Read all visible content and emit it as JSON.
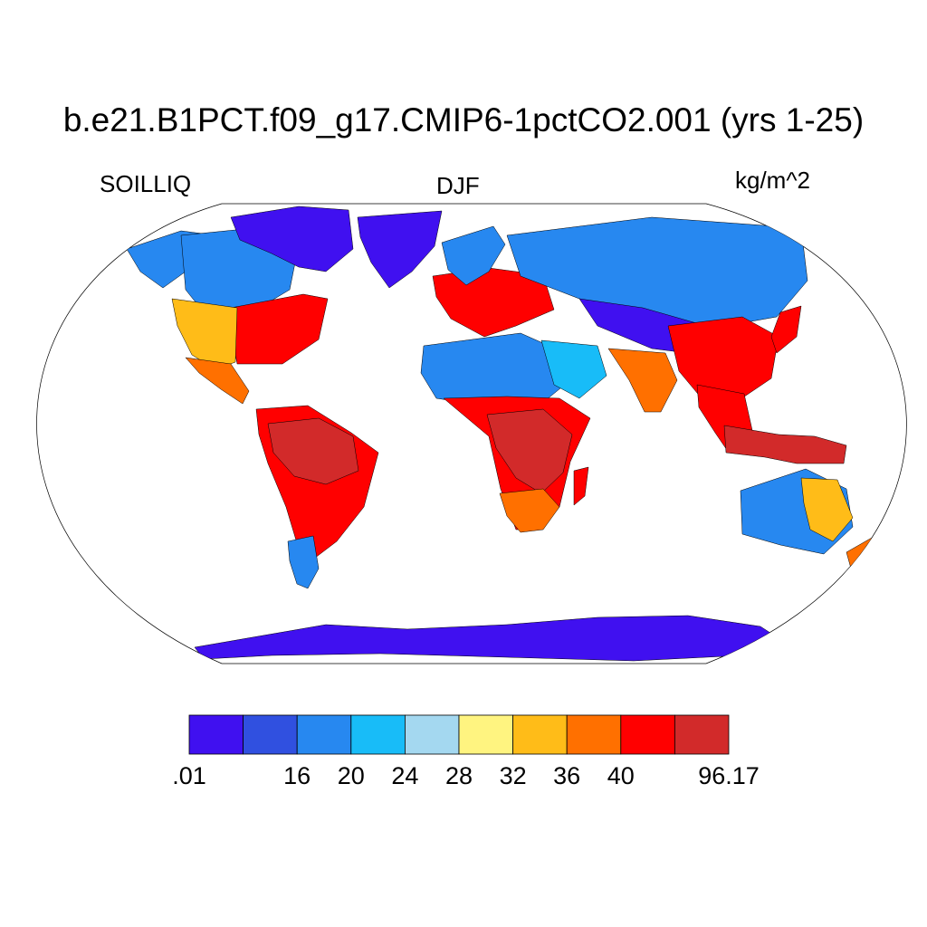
{
  "header": {
    "title": "b.e21.B1PCT.f09_g17.CMIP6-1pctCO2.001 (yrs 1-25)",
    "variable": "SOILLIQ",
    "season": "DJF",
    "units": "kg/m^2"
  },
  "colorbar": {
    "colors": [
      "#4010f0",
      "#3050e0",
      "#2788f0",
      "#18bcf8",
      "#a4d8f0",
      "#fff480",
      "#ffbc18",
      "#ff7000",
      "#ff0000",
      "#d22a2a"
    ],
    "labels": [
      {
        "text": ".01",
        "boundary": 0
      },
      {
        "text": "16",
        "boundary": 2
      },
      {
        "text": "20",
        "boundary": 3
      },
      {
        "text": "24",
        "boundary": 4
      },
      {
        "text": "28",
        "boundary": 5
      },
      {
        "text": "32",
        "boundary": 6
      },
      {
        "text": "36",
        "boundary": 7
      },
      {
        "text": "40",
        "boundary": 8
      },
      {
        "text": "96.17",
        "boundary": 10
      }
    ]
  },
  "map": {
    "projection": "robinson",
    "regions": [
      {
        "name": "alaska",
        "color": "#2788f0"
      },
      {
        "name": "canada-west",
        "color": "#2788f0"
      },
      {
        "name": "canadian-arctic",
        "color": "#4010f0"
      },
      {
        "name": "greenland",
        "color": "#4010f0"
      },
      {
        "name": "eastern-usa",
        "color": "#ff0000"
      },
      {
        "name": "western-usa",
        "color": "#ffbc18"
      },
      {
        "name": "mexico",
        "color": "#ff7000"
      },
      {
        "name": "south-america",
        "color": "#ff0000"
      },
      {
        "name": "amazon",
        "color": "#d22a2a"
      },
      {
        "name": "patagonia",
        "color": "#2788f0"
      },
      {
        "name": "europe",
        "color": "#ff0000"
      },
      {
        "name": "scandinavia",
        "color": "#2788f0"
      },
      {
        "name": "siberia",
        "color": "#2788f0"
      },
      {
        "name": "central-asia",
        "color": "#4010f0"
      },
      {
        "name": "sahara",
        "color": "#2788f0"
      },
      {
        "name": "arabia",
        "color": "#18bcf8"
      },
      {
        "name": "sub-saharan-africa",
        "color": "#ff0000"
      },
      {
        "name": "central-africa",
        "color": "#d22a2a"
      },
      {
        "name": "south-africa",
        "color": "#ff7000"
      },
      {
        "name": "madagascar",
        "color": "#ff0000"
      },
      {
        "name": "india",
        "color": "#ff7000"
      },
      {
        "name": "china",
        "color": "#ff0000"
      },
      {
        "name": "southeast-asia",
        "color": "#ff0000"
      },
      {
        "name": "japan",
        "color": "#ff0000"
      },
      {
        "name": "indonesia",
        "color": "#d22a2a"
      },
      {
        "name": "australia",
        "color": "#2788f0"
      },
      {
        "name": "australia-east",
        "color": "#ffbc18"
      },
      {
        "name": "new-zealand",
        "color": "#ff7000"
      },
      {
        "name": "antarctica",
        "color": "#4010f0"
      }
    ]
  }
}
